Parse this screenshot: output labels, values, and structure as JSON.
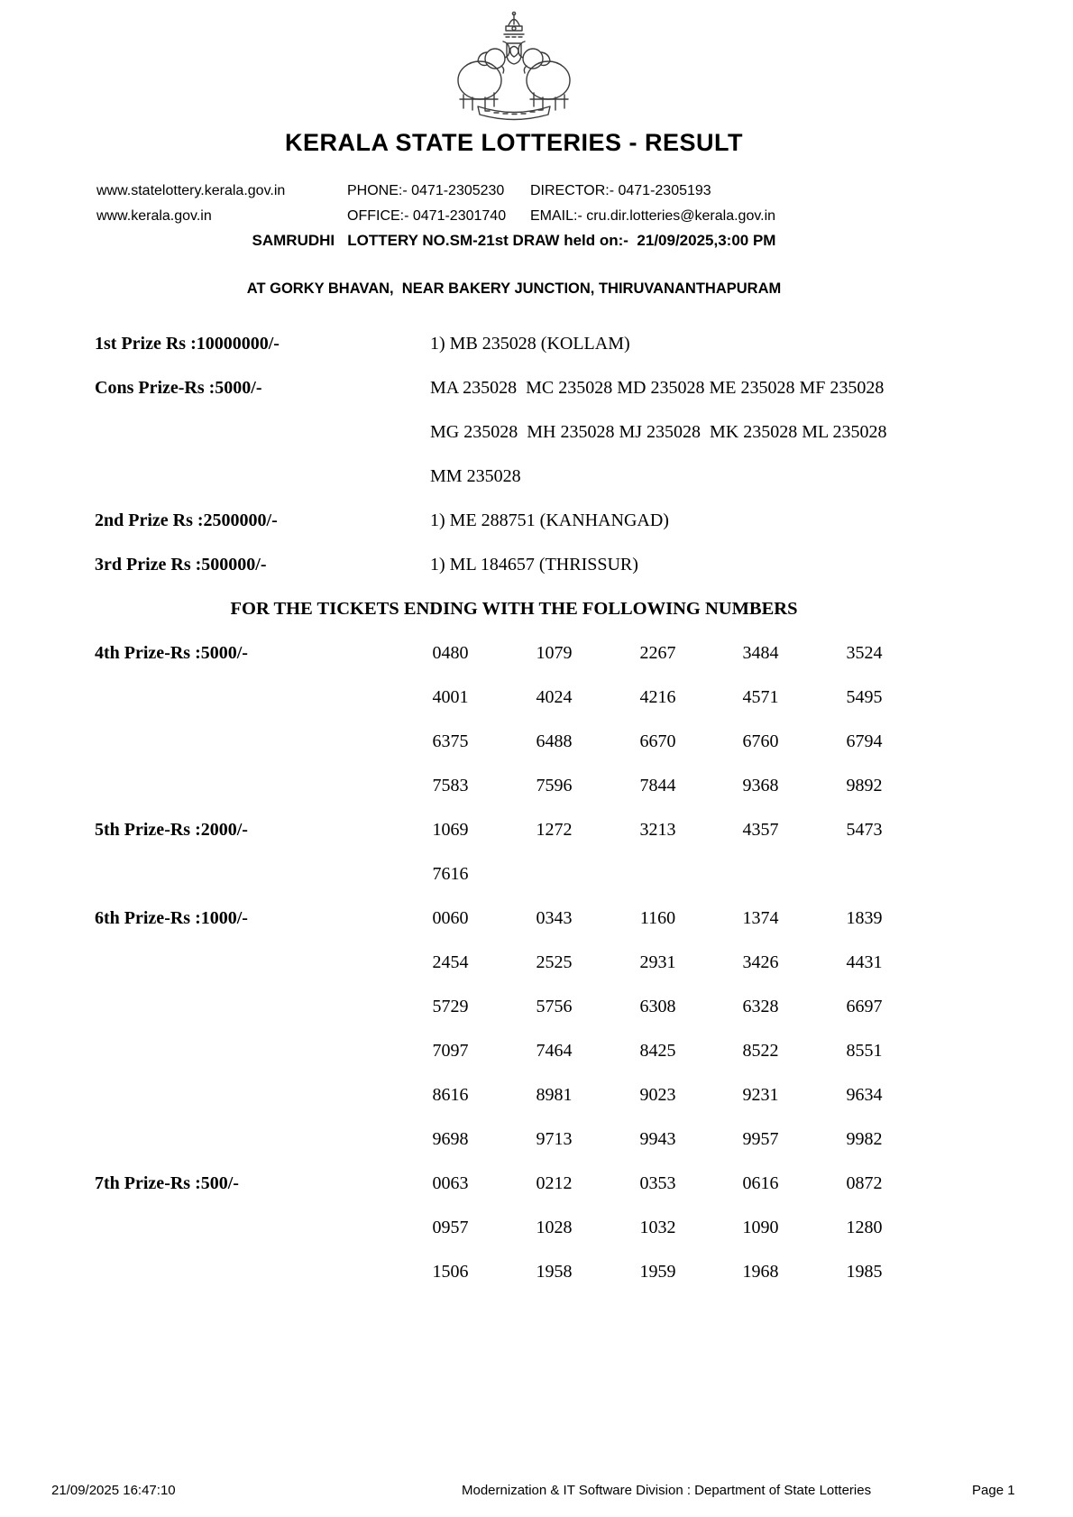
{
  "colors": {
    "text": "#000000",
    "background": "#ffffff",
    "emblem_stroke": "#3c3c3c"
  },
  "header": {
    "emblem_icon": "kerala-government-emblem",
    "title": "KERALA STATE LOTTERIES - RESULT",
    "contact_rows": [
      {
        "website": "www.statelottery.kerala.gov.in",
        "phone": "PHONE:- 0471-2305230",
        "contact": "DIRECTOR:- 0471-2305193"
      },
      {
        "website": "www.kerala.gov.in",
        "phone": "OFFICE:- 0471-2301740",
        "contact": "EMAIL:- cru.dir.lotteries@kerala.gov.in"
      }
    ],
    "draw_line": "SAMRUDHI   LOTTERY NO.SM-21st DRAW held on:-  21/09/2025,3:00 PM",
    "venue_line": "AT GORKY BHAVAN,  NEAR BAKERY JUNCTION, THIRUVANANTHAPURAM"
  },
  "prizes": [
    {
      "label": "1st Prize Rs :10000000/-",
      "lines": [
        "1) MB 235028 (KOLLAM)"
      ]
    },
    {
      "label": "Cons Prize-Rs :5000/-",
      "lines": [
        "MA 235028  MC 235028 MD 235028 ME 235028 MF 235028",
        "MG 235028  MH 235028 MJ 235028  MK 235028 ML 235028",
        "MM 235028"
      ]
    },
    {
      "label": "2nd Prize Rs :2500000/-",
      "lines": [
        "1) ME 288751 (KANHANGAD)"
      ]
    },
    {
      "label": "3rd Prize Rs :500000/-",
      "lines": [
        "1) ML 184657 (THRISSUR)"
      ]
    }
  ],
  "section_heading": "FOR THE TICKETS ENDING WITH THE FOLLOWING NUMBERS",
  "ending_prizes": [
    {
      "label": "4th Prize-Rs :5000/-",
      "rows": [
        [
          "0480",
          "1079",
          "2267",
          "3484",
          "3524"
        ],
        [
          "4001",
          "4024",
          "4216",
          "4571",
          "5495"
        ],
        [
          "6375",
          "6488",
          "6670",
          "6760",
          "6794"
        ],
        [
          "7583",
          "7596",
          "7844",
          "9368",
          "9892"
        ]
      ]
    },
    {
      "label": "5th Prize-Rs :2000/-",
      "rows": [
        [
          "1069",
          "1272",
          "3213",
          "4357",
          "5473"
        ],
        [
          "7616"
        ]
      ]
    },
    {
      "label": "6th Prize-Rs :1000/-",
      "rows": [
        [
          "0060",
          "0343",
          "1160",
          "1374",
          "1839"
        ],
        [
          "2454",
          "2525",
          "2931",
          "3426",
          "4431"
        ],
        [
          "5729",
          "5756",
          "6308",
          "6328",
          "6697"
        ],
        [
          "7097",
          "7464",
          "8425",
          "8522",
          "8551"
        ],
        [
          "8616",
          "8981",
          "9023",
          "9231",
          "9634"
        ],
        [
          "9698",
          "9713",
          "9943",
          "9957",
          "9982"
        ]
      ]
    },
    {
      "label": "7th Prize-Rs :500/-",
      "rows": [
        [
          "0063",
          "0212",
          "0353",
          "0616",
          "0872"
        ],
        [
          "0957",
          "1028",
          "1032",
          "1090",
          "1280"
        ],
        [
          "1506",
          "1958",
          "1959",
          "1968",
          "1985"
        ]
      ]
    }
  ],
  "footer": {
    "generated": "21/09/2025 16:47:10",
    "division": "Modernization & IT Software Division : Department of State Lotteries",
    "page": "Page 1"
  }
}
